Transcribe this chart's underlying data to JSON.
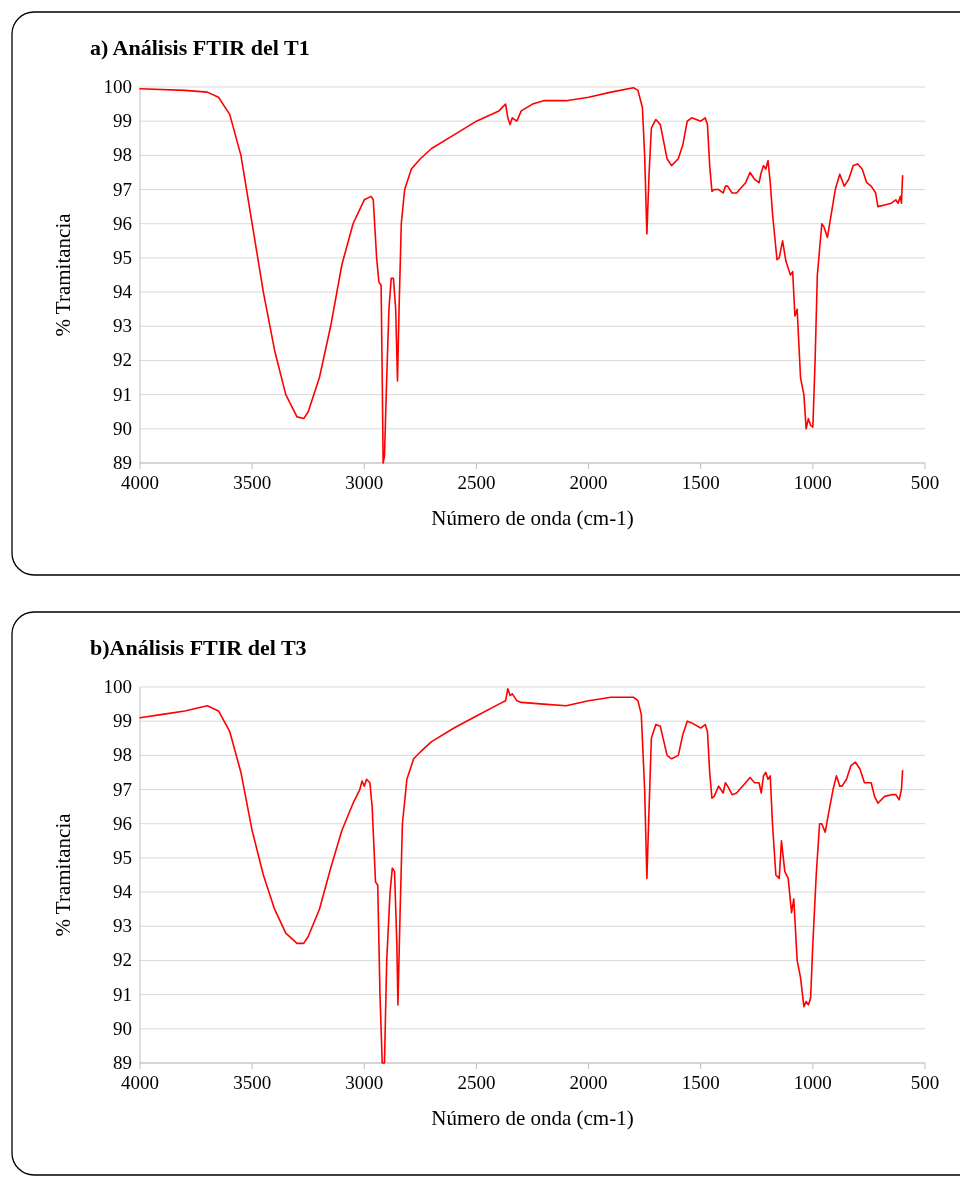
{
  "chart_data": [
    {
      "type": "line",
      "title": "a) Análisis FTIR del T1",
      "xlabel": "Número de onda (cm-1)",
      "ylabel": "% Tramitancia",
      "xlim": [
        4000,
        500
      ],
      "xticks": [
        4000,
        3500,
        3000,
        2500,
        2000,
        1500,
        1000,
        500
      ],
      "ylim": [
        89,
        100
      ],
      "yticks": [
        89,
        90,
        91,
        92,
        93,
        94,
        95,
        96,
        97,
        98,
        99,
        100
      ],
      "grid": "y",
      "x": [
        4000,
        3800,
        3700,
        3650,
        3600,
        3550,
        3500,
        3450,
        3400,
        3350,
        3300,
        3270,
        3250,
        3200,
        3150,
        3100,
        3050,
        3000,
        2970,
        2960,
        2945,
        2935,
        2925,
        2920,
        2916,
        2910,
        2900,
        2890,
        2880,
        2870,
        2860,
        2852,
        2845,
        2835,
        2820,
        2790,
        2750,
        2700,
        2600,
        2500,
        2400,
        2370,
        2360,
        2350,
        2340,
        2320,
        2300,
        2250,
        2200,
        2100,
        2000,
        1900,
        1800,
        1780,
        1760,
        1750,
        1740,
        1730,
        1720,
        1700,
        1680,
        1650,
        1630,
        1600,
        1580,
        1560,
        1540,
        1500,
        1480,
        1470,
        1460,
        1450,
        1440,
        1420,
        1400,
        1390,
        1380,
        1360,
        1340,
        1300,
        1280,
        1260,
        1240,
        1230,
        1220,
        1210,
        1200,
        1190,
        1180,
        1160,
        1150,
        1135,
        1120,
        1100,
        1090,
        1080,
        1070,
        1055,
        1040,
        1030,
        1020,
        1010,
        1000,
        990,
        980,
        960,
        950,
        935,
        920,
        900,
        880,
        860,
        840,
        820,
        800,
        780,
        760,
        740,
        720,
        710,
        680,
        650,
        630,
        620,
        610,
        605,
        600
      ],
      "series": [
        {
          "color": "#ff0000",
          "values": [
            99.95,
            99.9,
            99.85,
            99.7,
            99.2,
            98.0,
            96.0,
            94.0,
            92.3,
            91.0,
            90.35,
            90.3,
            90.5,
            91.5,
            93.0,
            94.8,
            96.0,
            96.7,
            96.8,
            96.7,
            95.0,
            94.3,
            94.2,
            91.5,
            89,
            89.2,
            91.5,
            93.5,
            94.4,
            94.4,
            93.5,
            91.4,
            93.5,
            96.0,
            97.0,
            97.6,
            97.9,
            98.2,
            98.6,
            99.0,
            99.3,
            99.5,
            99.1,
            98.9,
            99.1,
            99.0,
            99.3,
            99.5,
            99.6,
            99.6,
            99.7,
            99.85,
            99.98,
            99.9,
            99.4,
            98.0,
            95.7,
            97.5,
            98.8,
            99.05,
            98.9,
            97.9,
            97.7,
            97.9,
            98.3,
            99.0,
            99.1,
            99.0,
            99.1,
            98.9,
            97.7,
            96.95,
            97.0,
            97.0,
            96.9,
            97.1,
            97.1,
            96.9,
            96.9,
            97.2,
            97.5,
            97.3,
            97.2,
            97.5,
            97.7,
            97.6,
            97.85,
            97.2,
            96.3,
            94.95,
            95.0,
            95.5,
            94.9,
            94.5,
            94.6,
            93.3,
            93.5,
            91.5,
            91.0,
            90.0,
            90.3,
            90.1,
            90.05,
            92.0,
            94.5,
            96.0,
            95.9,
            95.6,
            96.2,
            97.0,
            97.45,
            97.1,
            97.3,
            97.7,
            97.75,
            97.6,
            97.2,
            97.1,
            96.9,
            96.5,
            96.55,
            96.6,
            96.7,
            96.6,
            96.8,
            96.6,
            97.4
          ]
        }
      ]
    },
    {
      "type": "line",
      "title": "b)Análisis FTIR del T3",
      "xlabel": "Número de onda (cm-1)",
      "ylabel": "% Tramitancia",
      "xlim": [
        4000,
        500
      ],
      "xticks": [
        4000,
        3500,
        3000,
        2500,
        2000,
        1500,
        1000,
        500
      ],
      "ylim": [
        89,
        100
      ],
      "yticks": [
        89,
        90,
        91,
        92,
        93,
        94,
        95,
        96,
        97,
        98,
        99,
        100
      ],
      "grid": "y",
      "x": [
        4000,
        3900,
        3800,
        3700,
        3650,
        3600,
        3550,
        3500,
        3450,
        3400,
        3350,
        3300,
        3270,
        3250,
        3200,
        3150,
        3100,
        3050,
        3020,
        3010,
        3000,
        2990,
        2975,
        2965,
        2950,
        2940,
        2930,
        2920,
        2910,
        2900,
        2885,
        2875,
        2865,
        2855,
        2850,
        2840,
        2830,
        2810,
        2780,
        2750,
        2700,
        2600,
        2500,
        2400,
        2370,
        2360,
        2350,
        2340,
        2320,
        2300,
        2200,
        2100,
        2000,
        1900,
        1800,
        1780,
        1765,
        1750,
        1740,
        1730,
        1720,
        1700,
        1680,
        1650,
        1630,
        1600,
        1580,
        1560,
        1540,
        1500,
        1480,
        1470,
        1460,
        1450,
        1440,
        1420,
        1400,
        1390,
        1380,
        1360,
        1340,
        1300,
        1280,
        1260,
        1240,
        1230,
        1220,
        1210,
        1200,
        1190,
        1180,
        1165,
        1150,
        1140,
        1125,
        1110,
        1095,
        1085,
        1070,
        1055,
        1040,
        1030,
        1020,
        1010,
        1000,
        985,
        970,
        960,
        945,
        930,
        910,
        895,
        880,
        870,
        850,
        830,
        810,
        790,
        770,
        755,
        740,
        725,
        710,
        680,
        650,
        630,
        615,
        605,
        600
      ],
      "series": [
        {
          "color": "#ff0000",
          "values": [
            99.1,
            99.2,
            99.3,
            99.45,
            99.3,
            98.7,
            97.5,
            95.8,
            94.5,
            93.5,
            92.8,
            92.5,
            92.5,
            92.7,
            93.5,
            94.7,
            95.8,
            96.6,
            97.0,
            97.25,
            97.1,
            97.3,
            97.2,
            96.5,
            94.3,
            94.2,
            91.0,
            89,
            89,
            92.0,
            94.0,
            94.7,
            94.6,
            92.5,
            90.7,
            93.5,
            96.0,
            97.3,
            97.9,
            98.1,
            98.4,
            98.8,
            99.15,
            99.5,
            99.6,
            99.95,
            99.75,
            99.8,
            99.6,
            99.55,
            99.5,
            99.45,
            99.6,
            99.7,
            99.7,
            99.6,
            99.2,
            97.0,
            94.4,
            96.5,
            98.5,
            98.9,
            98.85,
            98.0,
            97.9,
            98.0,
            98.6,
            99.0,
            98.95,
            98.8,
            98.9,
            98.7,
            97.5,
            96.75,
            96.8,
            97.1,
            96.9,
            97.2,
            97.1,
            96.85,
            96.9,
            97.2,
            97.35,
            97.2,
            97.2,
            96.9,
            97.4,
            97.5,
            97.3,
            97.4,
            96.0,
            94.5,
            94.4,
            95.5,
            94.6,
            94.4,
            93.4,
            93.8,
            92.0,
            91.5,
            90.65,
            90.8,
            90.7,
            90.9,
            92.5,
            94.5,
            96.0,
            96.0,
            95.75,
            96.3,
            97.0,
            97.4,
            97.1,
            97.1,
            97.3,
            97.7,
            97.8,
            97.6,
            97.2,
            97.2,
            97.2,
            96.8,
            96.6,
            96.8,
            96.85,
            96.85,
            96.7,
            97.0,
            97.55
          ]
        }
      ]
    }
  ]
}
